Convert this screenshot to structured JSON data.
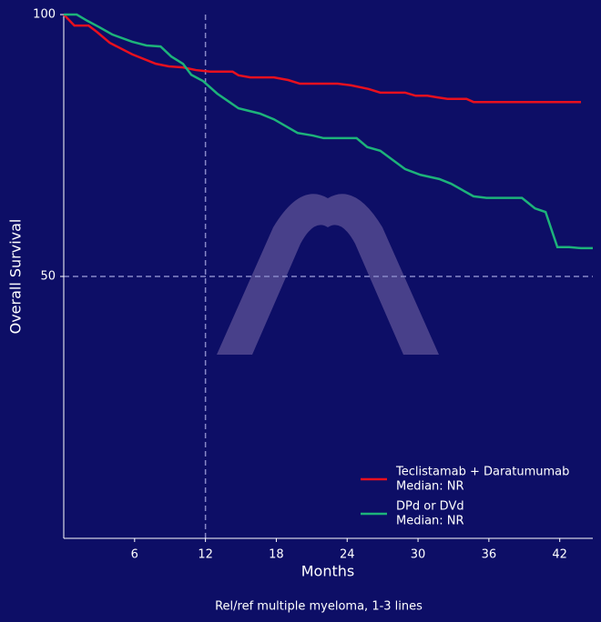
{
  "chart_data": {
    "type": "line",
    "xlabel": "Months",
    "ylabel": "Overall Survival",
    "footnote": "Rel/ref multiple myeloma, 1-3 lines",
    "xlim": [
      0,
      44.8
    ],
    "ylim": [
      0,
      100
    ],
    "xticks": [
      6,
      12,
      18,
      24,
      30,
      36,
      42
    ],
    "yticks": [
      50,
      100
    ],
    "vlines": [
      12
    ],
    "hlines": [
      50
    ],
    "legend": "lower right",
    "series": [
      {
        "name": "Teclistamab + Daratumumab",
        "median_label": "Median: NR",
        "color": "#e8101e",
        "x": [
          0,
          0.9,
          2.1,
          2.8,
          3.9,
          5.8,
          7.8,
          8.9,
          10.1,
          11.2,
          12.4,
          14.3,
          14.8,
          15.8,
          17.8,
          19,
          20,
          23.2,
          24.3,
          25.8,
          26.8,
          28.9,
          29.8,
          30.8,
          31.6,
          32.5,
          34.1,
          34.7,
          43.8
        ],
        "values": [
          100,
          97.9,
          97.9,
          96.7,
          94.6,
          92.4,
          90.6,
          90.1,
          89.9,
          89.4,
          89.1,
          89.1,
          88.4,
          88.0,
          88.0,
          87.5,
          86.8,
          86.8,
          86.5,
          85.8,
          85.1,
          85.1,
          84.5,
          84.5,
          84.2,
          83.9,
          83.9,
          83.3,
          83.3
        ]
      },
      {
        "name": "DPd or DVd",
        "median_label": "Median: NR",
        "color": "#1db37a",
        "x": [
          0,
          1.1,
          2,
          3,
          4.1,
          5.8,
          7,
          8.2,
          9.1,
          10.1,
          10.8,
          11.8,
          13,
          14.8,
          16.6,
          17.8,
          19.8,
          21.1,
          22,
          24.8,
          25.7,
          26.8,
          28.9,
          30.2,
          31.8,
          32.8,
          34.7,
          35.8,
          38.8,
          39.9,
          40.8,
          41.8,
          42.8,
          43.8,
          44.8
        ],
        "values": [
          100,
          100,
          98.8,
          97.6,
          96.2,
          94.8,
          94.1,
          93.9,
          92,
          90.6,
          88.5,
          87.3,
          84.9,
          82.1,
          81.1,
          80,
          77.4,
          76.9,
          76.4,
          76.4,
          74.7,
          74,
          70.5,
          69.4,
          68.6,
          67.7,
          65.3,
          65.0,
          65.0,
          63,
          62.3,
          55.6,
          55.6,
          55.4,
          55.4
        ]
      }
    ]
  }
}
